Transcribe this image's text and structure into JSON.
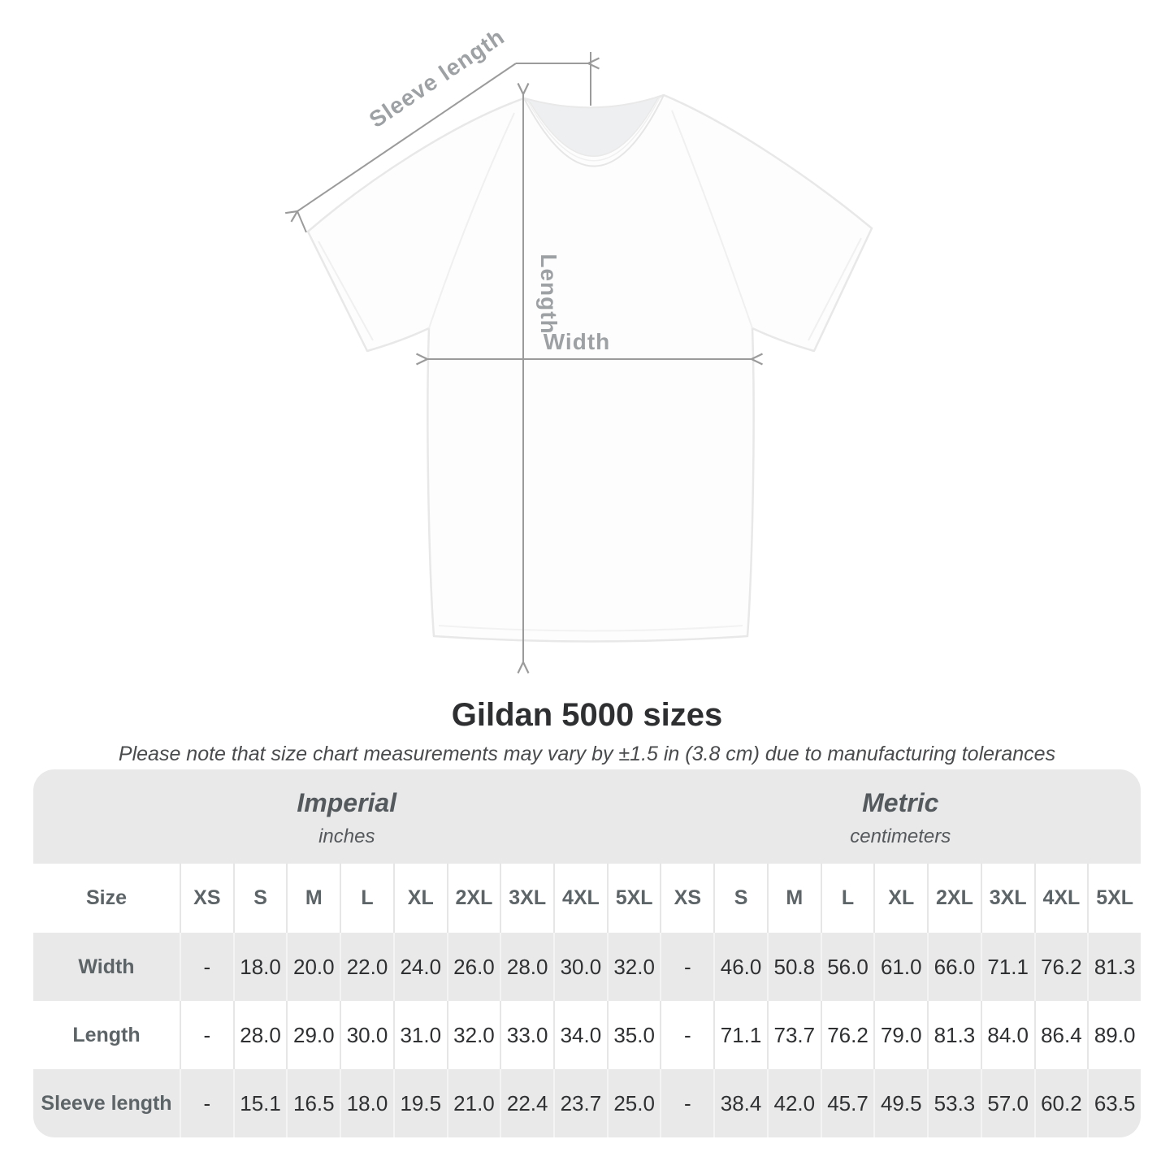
{
  "diagram": {
    "sleeve_label": "Sleeve length",
    "length_label": "Length",
    "width_label": "Width",
    "shirt_color": "#fdfdfd",
    "arrow_color": "#9b9b9b",
    "label_color": "#9ea1a4"
  },
  "title": "Gildan 5000 sizes",
  "subtitle": "Please note that size chart measurements may vary by ±1.5 in (3.8 cm) due to manufacturing tolerances",
  "chart_data": {
    "type": "table",
    "title": "Gildan 5000 sizes",
    "note": "Please note that size chart measurements may vary by ±1.5 in (3.8 cm) due to manufacturing tolerances",
    "unit_groups": [
      {
        "label": "Imperial",
        "sublabel": "inches"
      },
      {
        "label": "Metric",
        "sublabel": "centimeters"
      }
    ],
    "size_header": "Size",
    "columns": [
      "XS",
      "S",
      "M",
      "L",
      "XL",
      "2XL",
      "3XL",
      "4XL",
      "5XL"
    ],
    "rows": [
      {
        "label": "Width",
        "imperial": [
          "-",
          "18.0",
          "20.0",
          "22.0",
          "24.0",
          "26.0",
          "28.0",
          "30.0",
          "32.0"
        ],
        "metric": [
          "-",
          "46.0",
          "50.8",
          "56.0",
          "61.0",
          "66.0",
          "71.1",
          "76.2",
          "81.3"
        ]
      },
      {
        "label": "Length",
        "imperial": [
          "-",
          "28.0",
          "29.0",
          "30.0",
          "31.0",
          "32.0",
          "33.0",
          "34.0",
          "35.0"
        ],
        "metric": [
          "-",
          "71.1",
          "73.7",
          "76.2",
          "79.0",
          "81.3",
          "84.0",
          "86.4",
          "89.0"
        ]
      },
      {
        "label": "Sleeve length",
        "imperial": [
          "-",
          "15.1",
          "16.5",
          "18.0",
          "19.5",
          "21.0",
          "22.4",
          "23.7",
          "25.0"
        ],
        "metric": [
          "-",
          "38.4",
          "42.0",
          "45.7",
          "49.5",
          "53.3",
          "57.0",
          "60.2",
          "63.5"
        ]
      }
    ],
    "colors": {
      "band_gray": "#e9e9e9",
      "row_gray": "#e9e9e9",
      "row_white": "#ffffff"
    }
  }
}
